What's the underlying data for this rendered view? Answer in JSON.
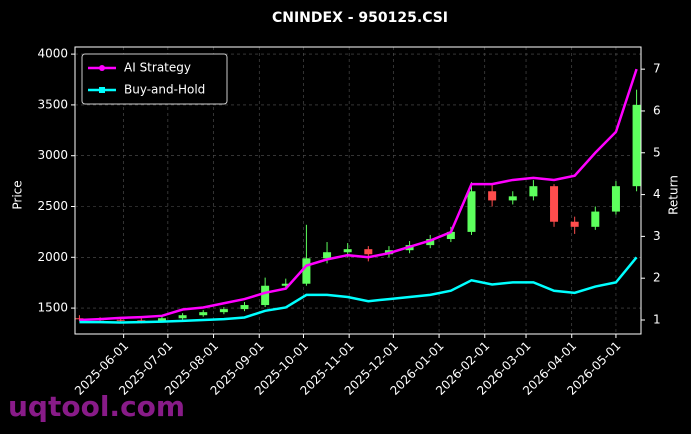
{
  "chart_data": {
    "type": "candlestick",
    "title": "CNINDEX - 950125.CSI",
    "y_label": "Price",
    "y2_label": "Return",
    "watermark": "uqtool.com",
    "x": [
      "2025-05-02",
      "2025-05-16",
      "2025-05-30",
      "2025-06-13",
      "2025-06-27",
      "2025-07-11",
      "2025-07-25",
      "2025-08-08",
      "2025-08-22",
      "2025-09-05",
      "2025-09-19",
      "2025-10-03",
      "2025-10-17",
      "2025-10-31",
      "2025-11-14",
      "2025-11-28",
      "2025-12-12",
      "2025-12-26",
      "2026-01-09",
      "2026-01-23",
      "2026-02-06",
      "2026-02-20",
      "2026-03-06",
      "2026-03-20",
      "2026-04-03",
      "2026-04-17",
      "2026-05-01",
      "2026-05-15"
    ],
    "open": [
      1400,
      1390,
      1385,
      1380,
      1375,
      1400,
      1430,
      1460,
      1490,
      1530,
      1720,
      1740,
      1990,
      2050,
      2080,
      2030,
      2070,
      2120,
      2180,
      2250,
      2650,
      2560,
      2600,
      2700,
      2350,
      2300,
      2450,
      2700
    ],
    "high": [
      1430,
      1410,
      1400,
      1400,
      1420,
      1450,
      1480,
      1510,
      1560,
      1800,
      1790,
      2320,
      2150,
      2140,
      2110,
      2110,
      2160,
      2220,
      2300,
      2740,
      2720,
      2650,
      2760,
      2720,
      2400,
      2500,
      2750,
      3650
    ],
    "low": [
      1370,
      1360,
      1355,
      1350,
      1360,
      1385,
      1415,
      1440,
      1470,
      1510,
      1690,
      1720,
      1940,
      2000,
      1960,
      2000,
      2040,
      2090,
      2150,
      2220,
      2500,
      2520,
      2560,
      2300,
      2230,
      2270,
      2420,
      2650
    ],
    "close": [
      1390,
      1385,
      1380,
      1375,
      1400,
      1430,
      1460,
      1490,
      1530,
      1720,
      1740,
      1990,
      2050,
      2080,
      2030,
      2070,
      2120,
      2180,
      2250,
      2650,
      2560,
      2600,
      2700,
      2350,
      2300,
      2450,
      2700,
      3500
    ],
    "up_color": "#5dff5d",
    "down_color": "#ff4d4d",
    "series": [
      {
        "name": "AI Strategy",
        "color": "#ff00ff",
        "axis": "y2",
        "values": [
          1.0,
          1.02,
          1.05,
          1.07,
          1.1,
          1.25,
          1.3,
          1.4,
          1.5,
          1.65,
          1.75,
          2.3,
          2.45,
          2.55,
          2.5,
          2.6,
          2.75,
          2.9,
          3.1,
          4.25,
          4.25,
          4.35,
          4.4,
          4.35,
          4.45,
          5.0,
          5.5,
          7.0
        ]
      },
      {
        "name": "Buy-and-Hold",
        "color": "#00ffff",
        "axis": "y2",
        "values": [
          0.95,
          0.95,
          0.94,
          0.95,
          0.96,
          0.98,
          1.0,
          1.02,
          1.06,
          1.22,
          1.3,
          1.6,
          1.6,
          1.55,
          1.45,
          1.5,
          1.55,
          1.6,
          1.7,
          1.95,
          1.85,
          1.9,
          1.9,
          1.7,
          1.65,
          1.8,
          1.9,
          2.5
        ]
      }
    ],
    "xlim": [
      "2025-04-29",
      "2026-05-18"
    ],
    "xticks": [
      "2025-06-01",
      "2025-07-01",
      "2025-08-01",
      "2025-09-01",
      "2025-10-01",
      "2025-11-01",
      "2025-12-01",
      "2026-01-01",
      "2026-02-01",
      "2026-03-01",
      "2026-04-01",
      "2026-05-01"
    ],
    "ylim": [
      1245,
      4070
    ],
    "yticks": [
      1500,
      2000,
      2500,
      3000,
      3500,
      4000
    ],
    "y2lim": [
      0.665,
      7.53
    ],
    "y2ticks": [
      1,
      2,
      3,
      4,
      5,
      6,
      7
    ],
    "grid": true,
    "legend": "upper left"
  }
}
